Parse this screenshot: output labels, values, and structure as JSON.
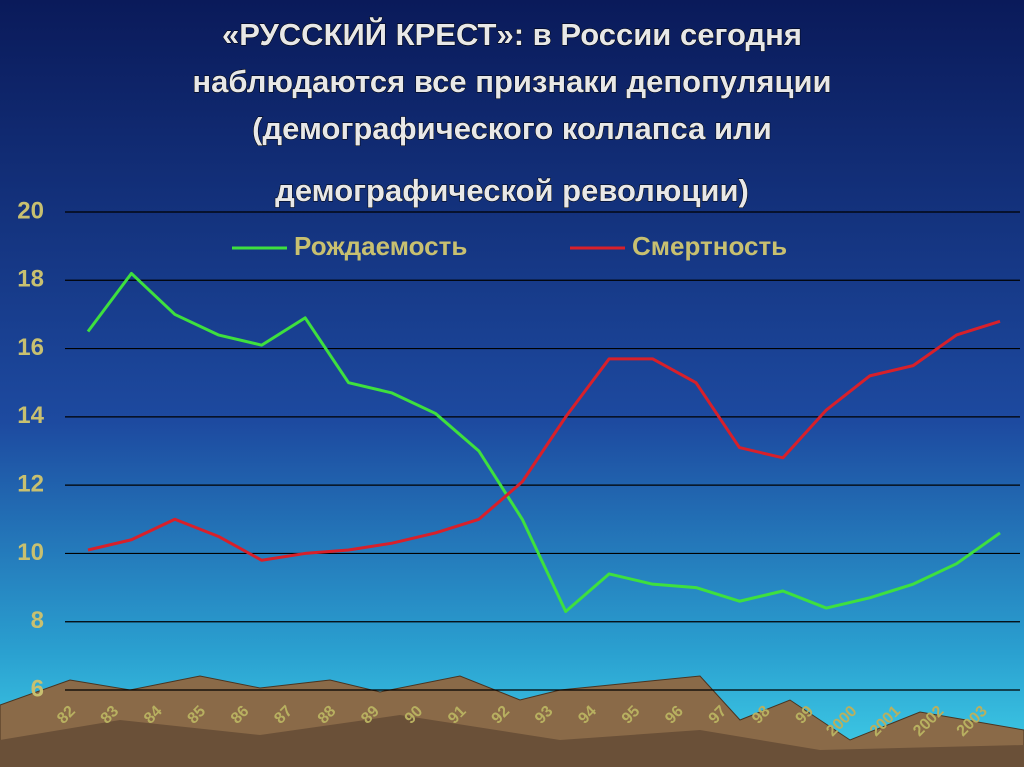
{
  "chart_data": {
    "type": "line",
    "title": [
      "«РУССКИЙ КРЕСТ»: в России сегодня",
      "наблюдаются все признаки депопуляции",
      "(демографического коллапса или",
      "демографической революции)"
    ],
    "categories": [
      "82",
      "83",
      "84",
      "85",
      "86",
      "87",
      "88",
      "89",
      "90",
      "91",
      "92",
      "93",
      "94",
      "95",
      "96",
      "97",
      "98",
      "99",
      "2000",
      "2001",
      "2002",
      "2003"
    ],
    "series": [
      {
        "name": "Рождаемость",
        "color": "#3ee03e",
        "values": [
          16.5,
          18.2,
          17.0,
          16.4,
          16.1,
          16.9,
          15.0,
          14.7,
          14.1,
          13.0,
          11.0,
          8.3,
          9.4,
          9.1,
          9.0,
          8.6,
          8.9,
          8.4,
          8.7,
          9.1,
          9.7,
          10.6
        ]
      },
      {
        "name": "Смертность",
        "color": "#d8202a",
        "values": [
          10.1,
          10.4,
          11.0,
          10.5,
          9.8,
          10.0,
          10.1,
          10.3,
          10.6,
          11.0,
          12.1,
          14.0,
          15.7,
          15.7,
          15.0,
          13.1,
          12.8,
          14.2,
          15.2,
          15.5,
          16.4,
          16.8
        ]
      }
    ],
    "ylim": [
      6,
      20
    ],
    "yticks": [
      6,
      8,
      10,
      12,
      14,
      16,
      18,
      20
    ],
    "grid": true
  }
}
